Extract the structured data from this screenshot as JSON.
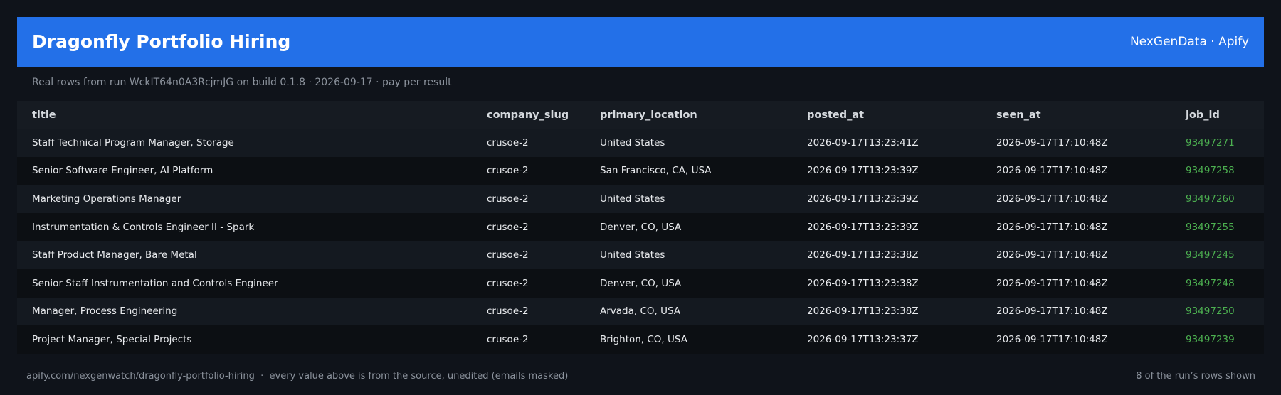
{
  "header": {
    "title": "Dragonfly Portfolio Hiring",
    "brand": "NexGenData · Apify"
  },
  "subtitle": "Real rows from run WckIT64n0A3RcjmJG on build 0.1.8 · 2026-09-17 · pay per result",
  "table": {
    "columns": [
      "title",
      "company_slug",
      "primary_location",
      "posted_at",
      "seen_at",
      "job_id"
    ],
    "rows": [
      [
        "Staff Technical Program Manager, Storage",
        "crusoe-2",
        "United States",
        "2026-09-17T13:23:41Z",
        "2026-09-17T17:10:48Z",
        "93497271"
      ],
      [
        "Senior Software Engineer, AI Platform",
        "crusoe-2",
        "San Francisco, CA, USA",
        "2026-09-17T13:23:39Z",
        "2026-09-17T17:10:48Z",
        "93497258"
      ],
      [
        "Marketing Operations Manager",
        "crusoe-2",
        "United States",
        "2026-09-17T13:23:39Z",
        "2026-09-17T17:10:48Z",
        "93497260"
      ],
      [
        "Instrumentation & Controls Engineer II - Spark",
        "crusoe-2",
        "Denver, CO, USA",
        "2026-09-17T13:23:39Z",
        "2026-09-17T17:10:48Z",
        "93497255"
      ],
      [
        "Staff Product Manager, Bare Metal",
        "crusoe-2",
        "United States",
        "2026-09-17T13:23:38Z",
        "2026-09-17T17:10:48Z",
        "93497245"
      ],
      [
        "Senior Staff Instrumentation and Controls Engineer",
        "crusoe-2",
        "Denver, CO, USA",
        "2026-09-17T13:23:38Z",
        "2026-09-17T17:10:48Z",
        "93497248"
      ],
      [
        "Manager, Process Engineering",
        "crusoe-2",
        "Arvada, CO, USA",
        "2026-09-17T13:23:38Z",
        "2026-09-17T17:10:48Z",
        "93497250"
      ],
      [
        "Project Manager, Special Projects",
        "crusoe-2",
        "Brighton, CO, USA",
        "2026-09-17T13:23:37Z",
        "2026-09-17T17:10:48Z",
        "93497239"
      ]
    ]
  },
  "footer": {
    "left": "apify.com/nexgenwatch/dragonfly-portfolio-hiring  ·  every value above is from the source, unedited (emails masked)",
    "right": "8 of the run’s rows shown"
  }
}
